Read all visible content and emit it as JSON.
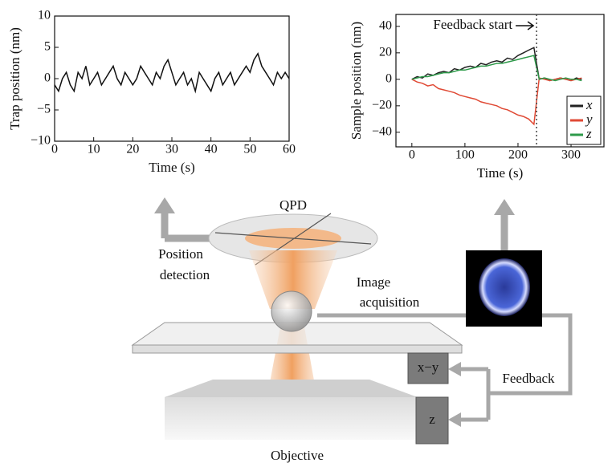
{
  "chart_data": [
    {
      "type": "line",
      "xlabel": "Time (s)",
      "ylabel": "Trap position (nm)",
      "xlim": [
        0,
        60
      ],
      "xticks": [
        0,
        10,
        20,
        30,
        40,
        50,
        60
      ],
      "ylim": [
        -10,
        10
      ],
      "yticks": [
        {
          "value": -10,
          "label": "−10"
        },
        {
          "value": -5,
          "label": "−5"
        },
        0,
        5,
        10
      ],
      "x": [
        0,
        1,
        2,
        3,
        4,
        5,
        6,
        7,
        8,
        9,
        10,
        11,
        12,
        13,
        14,
        15,
        16,
        17,
        18,
        19,
        20,
        21,
        22,
        23,
        24,
        25,
        26,
        27,
        28,
        29,
        30,
        31,
        32,
        33,
        34,
        35,
        36,
        37,
        38,
        39,
        40,
        41,
        42,
        43,
        44,
        45,
        46,
        47,
        48,
        49,
        50,
        51,
        52,
        53,
        54,
        55,
        56,
        57,
        58,
        59,
        60
      ],
      "series": [
        {
          "color": "#111111",
          "values": [
            -1,
            -2,
            0,
            1,
            -1,
            -2,
            1,
            0,
            2,
            -1,
            0,
            1,
            -1,
            0,
            1,
            2,
            0,
            -1,
            1,
            0,
            -1,
            0,
            2,
            1,
            0,
            -1,
            1,
            0,
            2,
            3,
            1,
            -1,
            0,
            1,
            -1,
            0,
            -2,
            1,
            0,
            -1,
            -2,
            0,
            1,
            -1,
            0,
            1,
            -1,
            0,
            1,
            2,
            1,
            3,
            4,
            2,
            1,
            0,
            -1,
            1,
            0,
            1,
            0
          ]
        }
      ]
    },
    {
      "type": "line",
      "xlabel": "Time (s)",
      "ylabel": "Sample position (nm)",
      "xlim": [
        -30,
        362
      ],
      "xticks": [
        0,
        100,
        200,
        300
      ],
      "ylim": [
        -51,
        49
      ],
      "yticks": [
        {
          "value": -40,
          "label": "−40"
        },
        {
          "value": -20,
          "label": "−20"
        },
        0,
        20,
        40
      ],
      "annotation": {
        "text": "Feedback start",
        "x": 235
      },
      "legend": "upper right",
      "x": [
        0,
        10,
        20,
        30,
        40,
        50,
        60,
        70,
        80,
        90,
        100,
        110,
        120,
        130,
        140,
        150,
        160,
        170,
        180,
        190,
        200,
        210,
        220,
        230,
        240,
        250,
        260,
        270,
        280,
        290,
        300,
        310,
        320
      ],
      "series": [
        {
          "name": "x",
          "color": "#222222",
          "values": [
            0,
            2,
            1,
            4,
            3,
            5,
            6,
            5,
            8,
            7,
            9,
            10,
            9,
            12,
            11,
            13,
            14,
            13,
            16,
            15,
            18,
            20,
            22,
            24,
            0,
            1,
            -1,
            0,
            1,
            0,
            -1,
            1,
            0
          ]
        },
        {
          "name": "y",
          "color": "#e04a35",
          "values": [
            0,
            -2,
            -3,
            -5,
            -4,
            -7,
            -8,
            -9,
            -10,
            -12,
            -13,
            -14,
            -15,
            -17,
            -18,
            -19,
            -20,
            -22,
            -23,
            -25,
            -27,
            -28,
            -30,
            -34,
            1,
            0,
            -1,
            0,
            1,
            0,
            -1,
            0,
            1
          ]
        },
        {
          "name": "z",
          "color": "#2e9a4a",
          "values": [
            0,
            1,
            2,
            2,
            3,
            4,
            5,
            5,
            6,
            7,
            7,
            8,
            9,
            10,
            10,
            11,
            12,
            12,
            13,
            14,
            15,
            16,
            17,
            18,
            0,
            1,
            0,
            -1,
            0,
            1,
            0,
            0,
            -1
          ]
        }
      ]
    }
  ],
  "diagram": {
    "qpd": "QPD",
    "position": "Position",
    "detection": "detection",
    "image": "Image",
    "acquisition": "acquisition",
    "xy": "x−y",
    "z": "z",
    "feedback": "Feedback",
    "objective": "Objective"
  }
}
